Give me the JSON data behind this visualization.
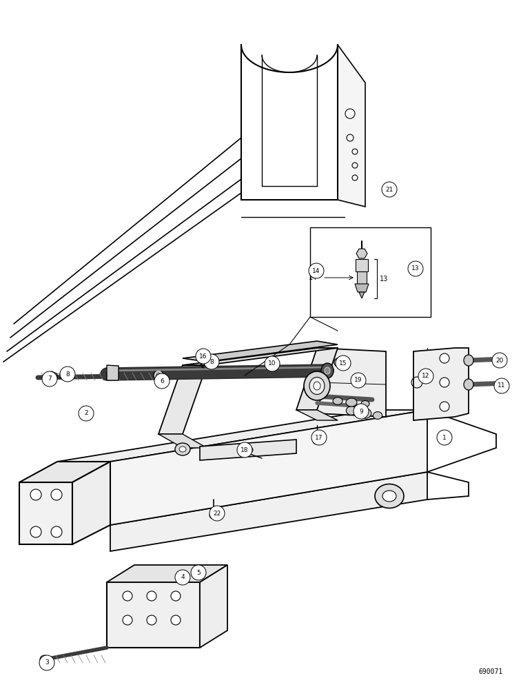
{
  "doc_number": "690071",
  "bg_color": "#ffffff",
  "line_color": "#000000",
  "figsize": [
    7.72,
    10.0
  ],
  "dpi": 100
}
